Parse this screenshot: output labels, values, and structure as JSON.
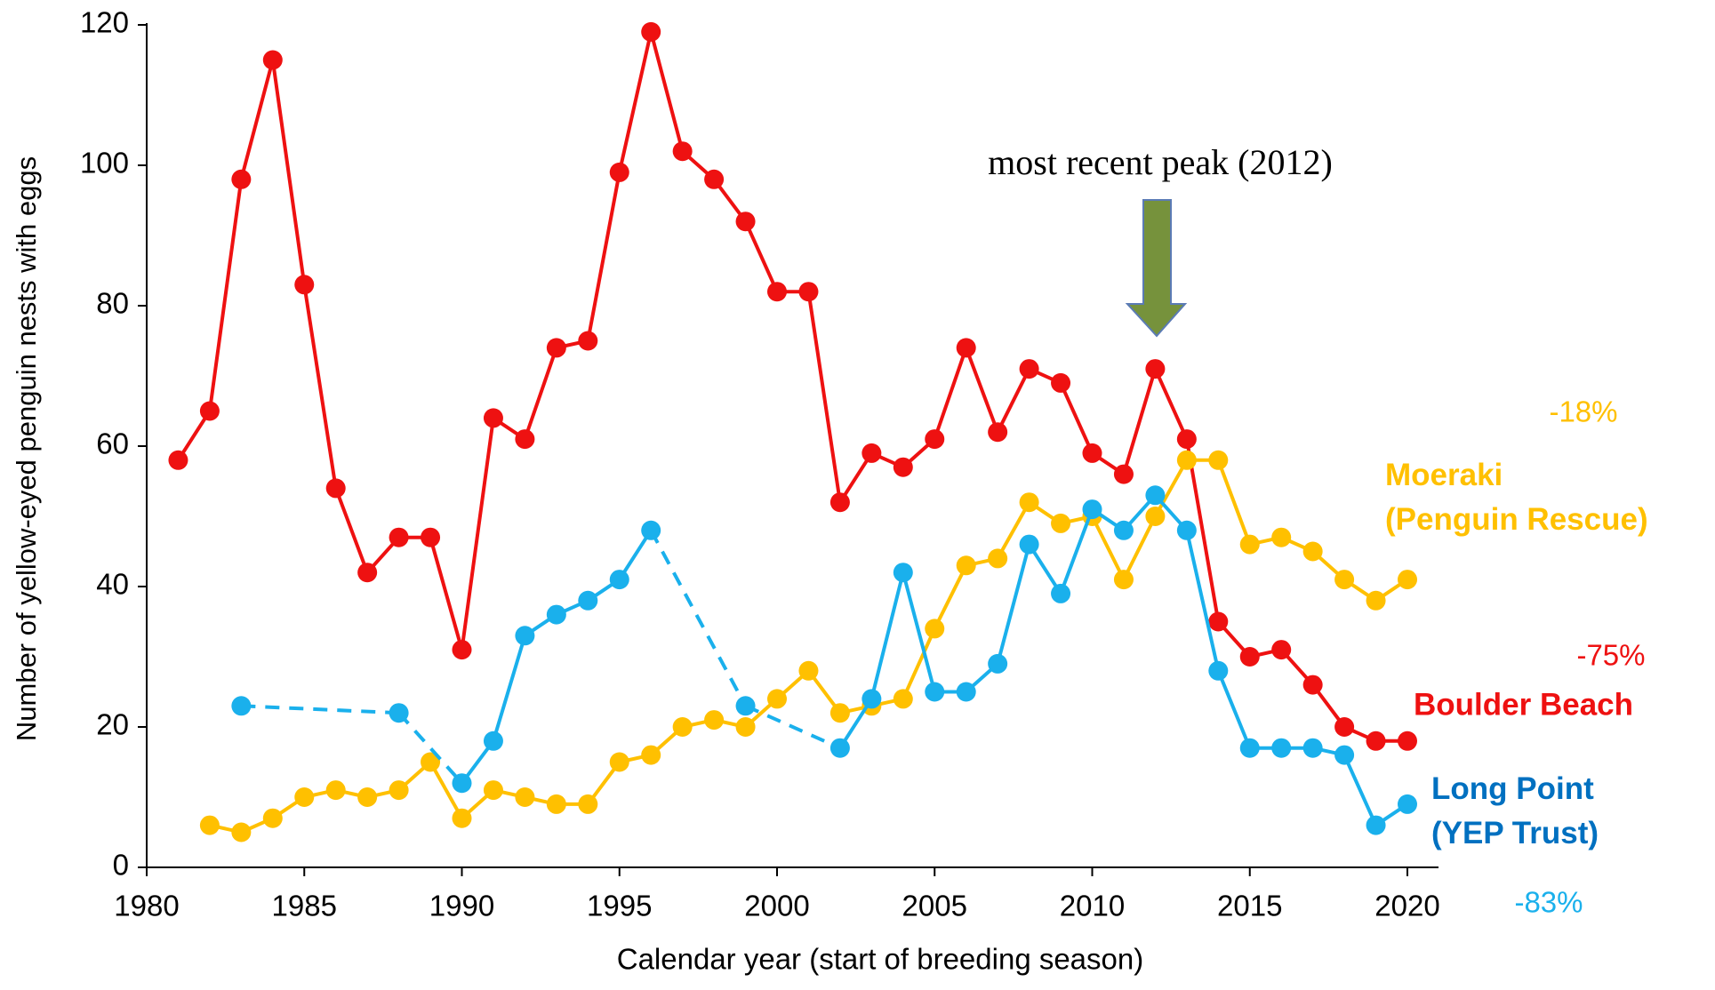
{
  "chart_data": {
    "type": "line",
    "x_label": "Calendar year (start of breeding season)",
    "y_label": "Number of yellow-eyed penguin nests with eggs",
    "xlim": [
      1980,
      2020
    ],
    "xticks": [
      1980,
      1985,
      1990,
      1995,
      2000,
      2005,
      2010,
      2015,
      2020
    ],
    "ylim": [
      0,
      120
    ],
    "yticks": [
      0,
      20,
      40,
      60,
      80,
      100,
      120
    ],
    "series": [
      {
        "name": "Boulder Beach",
        "color": "#ee1111",
        "x": [
          1981,
          1982,
          1983,
          1984,
          1985,
          1986,
          1987,
          1988,
          1989,
          1990,
          1991,
          1992,
          1993,
          1994,
          1995,
          1996,
          1997,
          1998,
          1999,
          2000,
          2001,
          2002,
          2003,
          2004,
          2005,
          2006,
          2007,
          2008,
          2009,
          2010,
          2011,
          2012,
          2013,
          2014,
          2015,
          2016,
          2017,
          2018,
          2019,
          2020
        ],
        "values": [
          58,
          65,
          98,
          115,
          83,
          54,
          42,
          47,
          47,
          31,
          64,
          61,
          74,
          75,
          99,
          119,
          102,
          98,
          92,
          82,
          82,
          52,
          59,
          57,
          61,
          74,
          62,
          71,
          69,
          59,
          56,
          71,
          61,
          35,
          30,
          31,
          26,
          20,
          18,
          18
        ],
        "change_label": "-75%"
      },
      {
        "name": "Moeraki (Penguin Rescue)",
        "color": "#ffc000",
        "x": [
          1982,
          1983,
          1984,
          1985,
          1986,
          1987,
          1988,
          1989,
          1990,
          1991,
          1992,
          1993,
          1994,
          1995,
          1996,
          1997,
          1998,
          1999,
          2000,
          2001,
          2002,
          2003,
          2004,
          2005,
          2006,
          2007,
          2008,
          2009,
          2010,
          2011,
          2012,
          2013,
          2014,
          2015,
          2016,
          2017,
          2018,
          2019,
          2020
        ],
        "values": [
          6,
          5,
          7,
          10,
          11,
          10,
          11,
          15,
          7,
          11,
          10,
          9,
          9,
          15,
          16,
          20,
          21,
          20,
          24,
          28,
          22,
          23,
          24,
          34,
          43,
          44,
          52,
          49,
          50,
          41,
          50,
          58,
          58,
          46,
          47,
          45,
          41,
          38,
          41
        ],
        "change_label": "-18%"
      },
      {
        "name": "Long Point (YEP Trust)",
        "color": "#1ab0ec",
        "x": [
          1983,
          1988,
          1990,
          1991,
          1992,
          1993,
          1994,
          1995,
          1996,
          1999,
          2002,
          2003,
          2004,
          2005,
          2006,
          2007,
          2008,
          2009,
          2010,
          2011,
          2012,
          2013,
          2014,
          2015,
          2016,
          2017,
          2018,
          2019,
          2020
        ],
        "values": [
          23,
          22,
          12,
          18,
          33,
          36,
          38,
          41,
          48,
          23,
          17,
          24,
          42,
          25,
          25,
          29,
          46,
          39,
          51,
          48,
          53,
          48,
          28,
          17,
          17,
          17,
          16,
          6,
          9
        ],
        "change_label": "-83%"
      }
    ],
    "annotation": "most recent peak (2012)"
  }
}
